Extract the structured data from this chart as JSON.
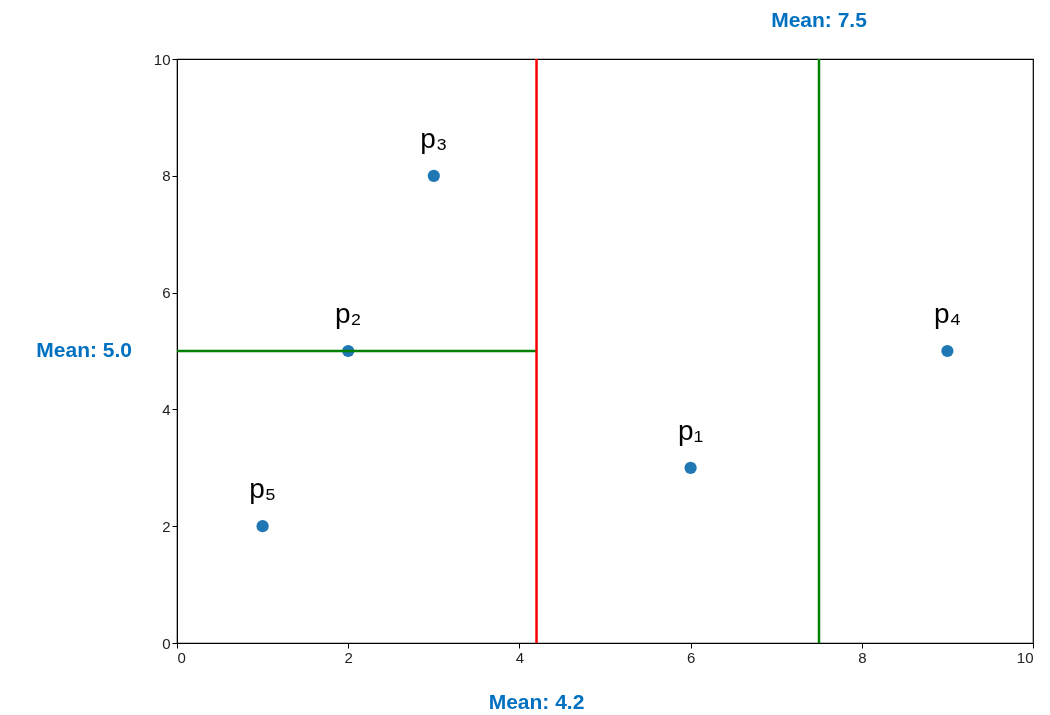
{
  "chart_data": {
    "type": "scatter",
    "x": [
      6,
      2,
      3,
      9,
      1
    ],
    "series": [
      {
        "color": "#1f77b4",
        "values": [
          3,
          5,
          8,
          5,
          2
        ],
        "marker": "circle"
      },
      {
        "type": "line",
        "name": "Mean: 5.0",
        "color": "#008000",
        "x": [
          0,
          4.2
        ],
        "values": [
          5,
          5
        ],
        "marker": "none"
      }
    ],
    "xlim": [
      0,
      10
    ],
    "ylim": [
      0,
      10
    ],
    "xticks": [
      0,
      2,
      4,
      6,
      8,
      10
    ],
    "yticks": [
      0,
      2,
      4,
      6,
      8,
      10
    ],
    "grid": false,
    "ref_lines": [
      {
        "axis": "x",
        "value": 4.2,
        "label": "Mean: 4.2",
        "color": "#ff0000"
      },
      {
        "axis": "x",
        "value": 7.5,
        "label": "Mean: 7.5",
        "color": "#008000"
      }
    ],
    "annotations": [
      {
        "text": "p₁",
        "x": 6,
        "y": 3
      },
      {
        "text": "p₂",
        "x": 2,
        "y": 5
      },
      {
        "text": "p₃",
        "x": 3,
        "y": 8
      },
      {
        "text": "p₄",
        "x": 9,
        "y": 5
      },
      {
        "text": "p₅",
        "x": 1,
        "y": 2
      }
    ]
  }
}
